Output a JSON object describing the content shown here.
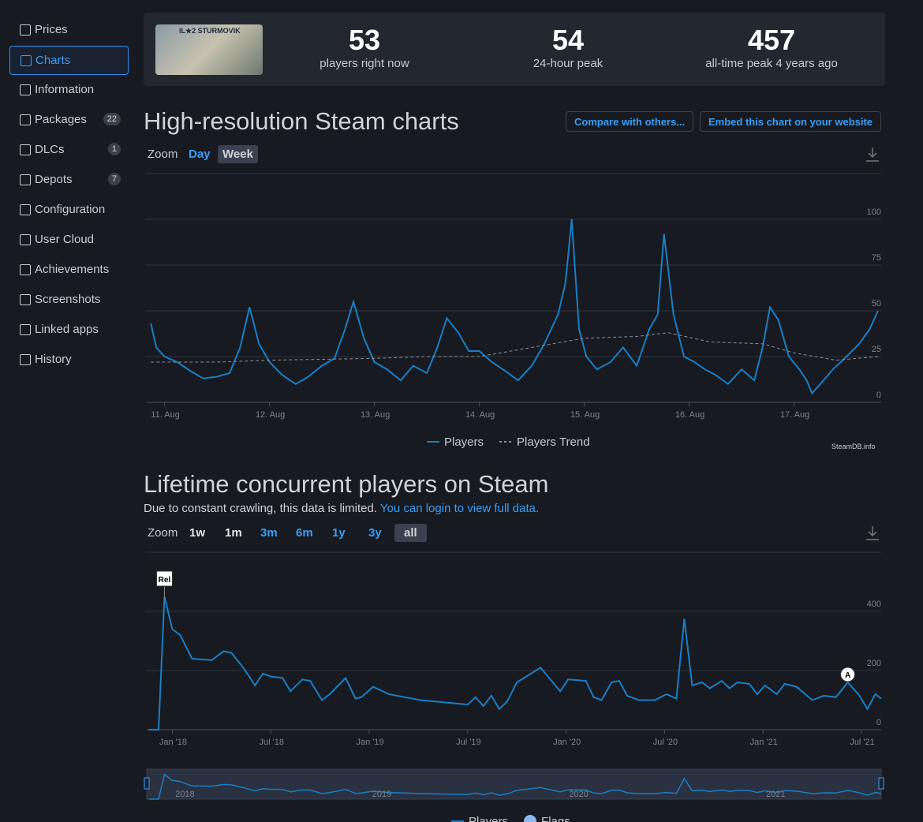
{
  "sidebar": {
    "items": [
      {
        "label": "Prices"
      },
      {
        "label": "Charts"
      },
      {
        "label": "Information"
      },
      {
        "label": "Packages",
        "badge": "22"
      },
      {
        "label": "DLCs",
        "badge": "1"
      },
      {
        "label": "Depots",
        "badge": "7"
      },
      {
        "label": "Configuration"
      },
      {
        "label": "User Cloud"
      },
      {
        "label": "Achievements"
      },
      {
        "label": "Screenshots"
      },
      {
        "label": "Linked apps"
      },
      {
        "label": "History"
      }
    ],
    "active": 1
  },
  "game_image_text": "IL★2 STURMOVIK",
  "stats": [
    {
      "value": "53",
      "label": "players right now"
    },
    {
      "value": "54",
      "label": "24-hour peak"
    },
    {
      "value": "457",
      "label": "all-time peak 4 years ago"
    }
  ],
  "section1": {
    "title": "High-resolution Steam charts",
    "buttons": [
      "Compare with others...",
      "Embed this chart on your website"
    ],
    "zoom_label": "Zoom",
    "zoom": [
      "Day",
      "Week"
    ],
    "credit": "SteamDB.info"
  },
  "section2": {
    "title": "Lifetime concurrent players on Steam",
    "note": "Due to constant crawling, this data is limited.",
    "note_link": "You can login to view full data.",
    "zoom_label": "Zoom",
    "zoom": [
      "1w",
      "1m",
      "3m",
      "6m",
      "1y",
      "3y",
      "all"
    ]
  },
  "chart_data": [
    {
      "type": "line",
      "ylim": [
        0,
        125
      ],
      "yticks": [
        0,
        25,
        50,
        75,
        100
      ],
      "xlim": [
        10.83,
        17.83
      ],
      "xticks": [
        {
          "value": 11,
          "label": "11. Aug"
        },
        {
          "value": 12,
          "label": "12. Aug"
        },
        {
          "value": 13,
          "label": "13. Aug"
        },
        {
          "value": 14,
          "label": "14. Aug"
        },
        {
          "value": 15,
          "label": "15. Aug"
        },
        {
          "value": 16,
          "label": "16. Aug"
        },
        {
          "value": 17,
          "label": "17. Aug"
        }
      ],
      "series": [
        {
          "name": "Players",
          "color": "#1a7fc4",
          "x": [
            10.87,
            10.92,
            11.0,
            11.12,
            11.25,
            11.37,
            11.5,
            11.62,
            11.72,
            11.81,
            11.9,
            12.0,
            12.12,
            12.25,
            12.37,
            12.5,
            12.62,
            12.72,
            12.8,
            12.9,
            13.0,
            13.12,
            13.25,
            13.37,
            13.5,
            13.6,
            13.69,
            13.8,
            13.9,
            14.0,
            14.12,
            14.25,
            14.37,
            14.5,
            14.62,
            14.75,
            14.82,
            14.88,
            14.95,
            15.02,
            15.12,
            15.25,
            15.37,
            15.5,
            15.62,
            15.7,
            15.76,
            15.85,
            15.95,
            16.05,
            16.15,
            16.25,
            16.37,
            16.5,
            16.62,
            16.7,
            16.77,
            16.85,
            16.95,
            17.05,
            17.12,
            17.17,
            17.25,
            17.37,
            17.5,
            17.62,
            17.72,
            17.8
          ],
          "values": [
            43,
            30,
            25,
            22,
            17,
            13,
            14,
            16,
            30,
            52,
            32,
            22,
            15,
            10,
            14,
            20,
            24,
            40,
            55,
            35,
            22,
            18,
            12,
            20,
            16,
            30,
            46,
            38,
            28,
            28,
            22,
            17,
            12,
            20,
            32,
            48,
            65,
            100,
            40,
            25,
            18,
            22,
            30,
            20,
            40,
            48,
            92,
            48,
            25,
            22,
            18,
            15,
            10,
            18,
            12,
            30,
            52,
            45,
            25,
            18,
            12,
            5,
            10,
            18,
            25,
            32,
            40,
            50
          ]
        },
        {
          "name": "Players Trend",
          "color": "#8a8f98",
          "dashed": true,
          "x": [
            10.87,
            11.5,
            12.0,
            13.0,
            13.5,
            14.0,
            14.5,
            15.0,
            15.5,
            15.8,
            16.2,
            16.7,
            17.0,
            17.4,
            17.8
          ],
          "values": [
            22,
            22,
            23,
            24,
            25,
            25,
            30,
            35,
            36,
            38,
            33,
            32,
            27,
            23,
            25
          ]
        }
      ]
    },
    {
      "type": "line",
      "ylim": [
        0,
        600
      ],
      "yticks": [
        0,
        200,
        400
      ],
      "xlim": [
        2017.87,
        2021.6
      ],
      "xticks": [
        {
          "value": 2018,
          "label": "Jan '18"
        },
        {
          "value": 2018.5,
          "label": "Jul '18"
        },
        {
          "value": 2019,
          "label": "Jan '19"
        },
        {
          "value": 2019.5,
          "label": "Jul '19"
        },
        {
          "value": 2020,
          "label": "Jan '20"
        },
        {
          "value": 2020.5,
          "label": "Jul '20"
        },
        {
          "value": 2021,
          "label": "Jan '21"
        },
        {
          "value": 2021.5,
          "label": "Jul '21"
        }
      ],
      "navigator_xticks": [
        2018,
        2019,
        2020,
        2021
      ],
      "series": [
        {
          "name": "Players",
          "color": "#1a7fc4",
          "x": [
            2017.88,
            2017.93,
            2017.96,
            2018.0,
            2018.04,
            2018.1,
            2018.2,
            2018.26,
            2018.3,
            2018.36,
            2018.42,
            2018.46,
            2018.5,
            2018.56,
            2018.6,
            2018.66,
            2018.7,
            2018.76,
            2018.8,
            2018.88,
            2018.93,
            2018.96,
            2019.02,
            2019.1,
            2019.18,
            2019.26,
            2019.34,
            2019.42,
            2019.5,
            2019.54,
            2019.58,
            2019.62,
            2019.66,
            2019.7,
            2019.75,
            2019.87,
            2019.97,
            2020.01,
            2020.1,
            2020.14,
            2020.18,
            2020.23,
            2020.27,
            2020.31,
            2020.37,
            2020.45,
            2020.51,
            2020.56,
            2020.6,
            2020.64,
            2020.69,
            2020.73,
            2020.79,
            2020.83,
            2020.87,
            2020.93,
            2020.97,
            2021.01,
            2021.07,
            2021.11,
            2021.17,
            2021.25,
            2021.31,
            2021.37,
            2021.43,
            2021.49,
            2021.53,
            2021.57,
            2021.6
          ],
          "values": [
            0,
            0,
            450,
            340,
            320,
            240,
            235,
            265,
            260,
            210,
            150,
            190,
            180,
            175,
            130,
            170,
            165,
            100,
            120,
            175,
            105,
            110,
            145,
            120,
            110,
            100,
            95,
            90,
            85,
            110,
            80,
            115,
            70,
            95,
            160,
            210,
            130,
            170,
            165,
            110,
            100,
            160,
            165,
            115,
            100,
            100,
            120,
            105,
            375,
            150,
            160,
            140,
            165,
            140,
            160,
            155,
            120,
            150,
            120,
            155,
            145,
            100,
            115,
            110,
            160,
            115,
            70,
            120,
            105
          ]
        },
        {
          "name": "Flags",
          "color": "#8ab8f0",
          "flags": [
            {
              "label": "Rel",
              "x": 2017.96
            },
            {
              "label": "A",
              "x": 2021.43
            }
          ]
        }
      ]
    }
  ]
}
